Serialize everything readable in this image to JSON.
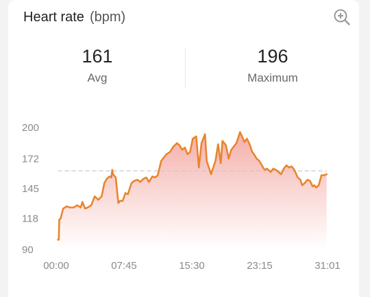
{
  "header": {
    "title": "Heart rate",
    "unit": "(bpm)",
    "zoom_icon": "zoom-in-icon"
  },
  "stats": {
    "avg": {
      "value": "161",
      "label": "Avg"
    },
    "max": {
      "value": "196",
      "label": "Maximum"
    }
  },
  "colors": {
    "line": "#e8852e",
    "fill_top": "#f4aaa4",
    "fill_bottom": "#ffffff",
    "avg_line": "#c8c8c8"
  },
  "chart_data": {
    "type": "area",
    "title": "",
    "xlabel": "",
    "ylabel": "",
    "ylim": [
      90,
      200
    ],
    "xlim": [
      0,
      31.0
    ],
    "y_ticks": [
      "200",
      "172",
      "145",
      "118",
      "90"
    ],
    "y_tick_values": [
      200,
      172,
      145,
      118,
      90
    ],
    "x_ticks": [
      "00:00",
      "07:45",
      "15:30",
      "23:15",
      "31:01"
    ],
    "x_tick_values": [
      0,
      7.75,
      15.5,
      23.25,
      31.0
    ],
    "avg_line_value": 161,
    "grid": false,
    "x": [
      0.2,
      0.3,
      0.35,
      0.5,
      0.8,
      1.2,
      1.6,
      2.0,
      2.4,
      2.8,
      3.0,
      3.3,
      3.6,
      4.0,
      4.4,
      4.8,
      5.2,
      5.5,
      5.8,
      6.1,
      6.3,
      6.4,
      6.5,
      6.8,
      7.1,
      7.3,
      7.6,
      7.9,
      8.2,
      8.6,
      8.9,
      9.3,
      9.6,
      10.0,
      10.3,
      10.6,
      11.0,
      11.3,
      11.6,
      12.0,
      12.3,
      12.6,
      13.0,
      13.4,
      13.8,
      14.1,
      14.4,
      14.7,
      15.0,
      15.3,
      15.6,
      16.0,
      16.3,
      16.6,
      16.8,
      17.0,
      17.2,
      17.4,
      17.7,
      17.9,
      18.2,
      18.5,
      18.8,
      19.0,
      19.2,
      19.4,
      19.7,
      20.0,
      20.3,
      20.6,
      21.0,
      21.3,
      21.5,
      21.8,
      22.1,
      22.4,
      22.6,
      22.9,
      23.2,
      23.5,
      23.8,
      24.1,
      24.5,
      24.8,
      25.1,
      25.4,
      25.7,
      26.0,
      26.3,
      26.6,
      26.9,
      27.2,
      27.6,
      27.9,
      28.1,
      28.4,
      28.7,
      29.0,
      29.3,
      29.5,
      29.7,
      30.0,
      30.3,
      30.6,
      30.9
    ],
    "series": [
      {
        "values": [
          99,
          99,
          117,
          118,
          127,
          129,
          128,
          128,
          130,
          128,
          133,
          127,
          128,
          130,
          138,
          135,
          138,
          150,
          154,
          156,
          155,
          162,
          158,
          155,
          132,
          134,
          134,
          141,
          140,
          150,
          152,
          153,
          151,
          154,
          155,
          151,
          156,
          155,
          157,
          170,
          173,
          176,
          178,
          183,
          186,
          184,
          180,
          182,
          176,
          178,
          190,
          192,
          164,
          186,
          190,
          194,
          170,
          165,
          158,
          163,
          170,
          185,
          168,
          188,
          186,
          184,
          172,
          180,
          183,
          186,
          196,
          191,
          187,
          190,
          185,
          178,
          176,
          172,
          170,
          166,
          162,
          163,
          160,
          163,
          162,
          160,
          158,
          163,
          166,
          164,
          165,
          162,
          155,
          153,
          148,
          150,
          153,
          152,
          147,
          148,
          146,
          148,
          157,
          157,
          158
        ]
      }
    ]
  }
}
